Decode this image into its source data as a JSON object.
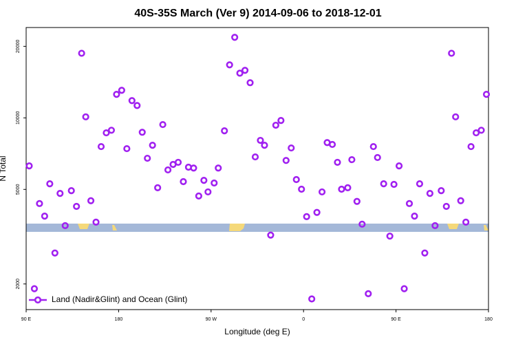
{
  "chart_data": {
    "type": "scatter",
    "title": "40S-35S March (Ver 9)   2014-09-06 to 2018-12-01",
    "x_label": "Longitude (deg E)",
    "y_label": "N Total",
    "log_y": true,
    "grid": false,
    "legend": "bottom-left",
    "xlim": [
      90,
      540
    ],
    "xticks": [
      {
        "value": 90,
        "label": "90 E"
      },
      180,
      {
        "value": 270,
        "label": "90 W"
      },
      {
        "value": 360,
        "label": "0"
      },
      {
        "value": 450,
        "label": "90 E"
      },
      {
        "value": 540,
        "label": "180"
      }
    ],
    "ylim": [
      1560,
      24000
    ],
    "yticks": [
      2000,
      5000,
      10000,
      20000
    ],
    "x": [
      93,
      98,
      103,
      108,
      113,
      118,
      123,
      128,
      134,
      139,
      144,
      148,
      153,
      158,
      163,
      168,
      173,
      178,
      183,
      188,
      193,
      198,
      203,
      208,
      213,
      218,
      223,
      228,
      233,
      238,
      243,
      248,
      253,
      258,
      263,
      267,
      273,
      277,
      283,
      288,
      293,
      298,
      303,
      308,
      313,
      318,
      322,
      328,
      333,
      338,
      343,
      348,
      353,
      358,
      363,
      368,
      373,
      378,
      383,
      388,
      393,
      397,
      403,
      407,
      412,
      417,
      423,
      428,
      432,
      438,
      444,
      448,
      453,
      458,
      463,
      468,
      473,
      478,
      483,
      488,
      494,
      499,
      504,
      508,
      513,
      518,
      523,
      528,
      533,
      538
    ],
    "series": [
      {
        "name": "Land (Nadir&Glint) and Ocean (Glint)",
        "color": "#a020f0",
        "values": [
          6280,
          1910,
          4360,
          3860,
          5280,
          2700,
          4810,
          3520,
          4940,
          4240,
          18700,
          10100,
          4480,
          3640,
          7570,
          8650,
          8870,
          12560,
          13060,
          7420,
          11820,
          11270,
          8700,
          6760,
          7670,
          5080,
          9370,
          6040,
          6370,
          6500,
          5390,
          6200,
          6150,
          4690,
          5460,
          4880,
          5320,
          6150,
          8820,
          16720,
          21830,
          15420,
          15850,
          14060,
          6850,
          8040,
          7670,
          3210,
          9310,
          9750,
          6620,
          7470,
          5500,
          5010,
          3840,
          1730,
          4000,
          4880,
          7870,
          7730,
          6500,
          5010,
          5080,
          6670,
          4450,
          3570,
          1820,
          7570,
          6810,
          5280,
          3180,
          5250,
          6280,
          1910,
          4360,
          3860,
          5280,
          2700,
          4810,
          3520,
          4940,
          4240,
          18700,
          10100,
          4480,
          3640,
          7570,
          8650,
          8870,
          12560
        ]
      }
    ]
  }
}
